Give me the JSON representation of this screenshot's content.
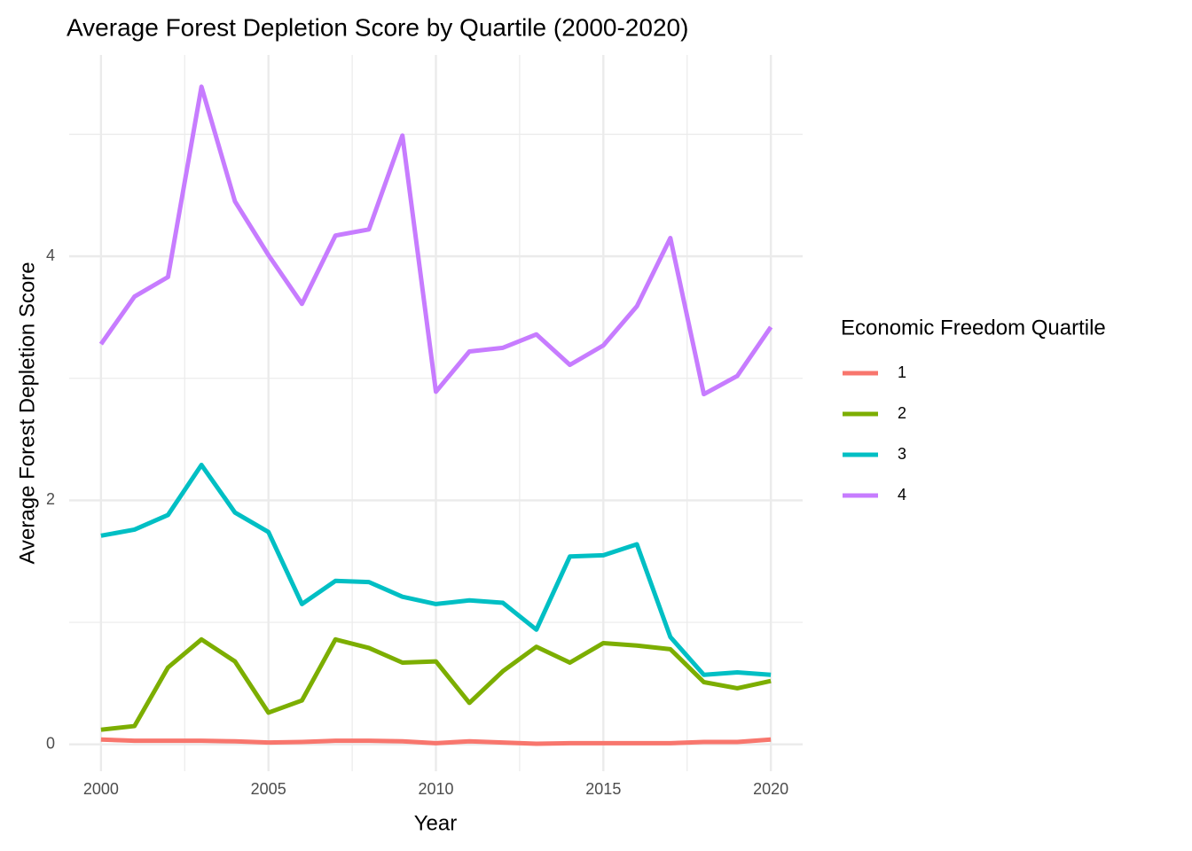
{
  "chart_data": {
    "type": "line",
    "title": "Average Forest Depletion Score by Quartile (2000-2020)",
    "x_label": "Year",
    "y_label": "Average Forest Depletion Score",
    "legend_title": "Economic Freedom Quartile",
    "legend_position": "right",
    "grid": true,
    "x": [
      2000,
      2001,
      2002,
      2003,
      2004,
      2005,
      2006,
      2007,
      2008,
      2009,
      2010,
      2011,
      2012,
      2013,
      2014,
      2015,
      2016,
      2017,
      2018,
      2019,
      2020
    ],
    "xlim": [
      1999.05,
      2020.95
    ],
    "xticks": [
      2000,
      2005,
      2010,
      2015,
      2020
    ],
    "ylim": [
      -0.22,
      5.65
    ],
    "yticks": [
      0,
      2,
      4
    ],
    "series": [
      {
        "name": "1",
        "color": "#F8766D",
        "values": [
          0.04,
          0.03,
          0.03,
          0.03,
          0.025,
          0.015,
          0.02,
          0.03,
          0.03,
          0.025,
          0.01,
          0.025,
          0.015,
          0.005,
          0.01,
          0.01,
          0.01,
          0.01,
          0.02,
          0.02,
          0.04
        ]
      },
      {
        "name": "2",
        "color": "#7CAE00",
        "values": [
          0.12,
          0.15,
          0.63,
          0.86,
          0.68,
          0.26,
          0.36,
          0.86,
          0.79,
          0.67,
          0.68,
          0.34,
          0.6,
          0.8,
          0.67,
          0.83,
          0.81,
          0.78,
          0.51,
          0.46,
          0.52
        ]
      },
      {
        "name": "3",
        "color": "#00BFC4",
        "values": [
          1.71,
          1.76,
          1.88,
          2.29,
          1.9,
          1.74,
          1.15,
          1.34,
          1.33,
          1.21,
          1.15,
          1.18,
          1.16,
          0.94,
          1.54,
          1.55,
          1.64,
          0.88,
          0.57,
          0.59,
          0.57
        ]
      },
      {
        "name": "4",
        "color": "#C77CFF",
        "values": [
          3.28,
          3.67,
          3.83,
          5.39,
          4.45,
          4.01,
          3.61,
          4.17,
          4.22,
          4.99,
          2.89,
          3.22,
          3.25,
          3.36,
          3.11,
          3.27,
          3.59,
          4.15,
          2.87,
          3.02,
          3.42
        ]
      }
    ]
  }
}
